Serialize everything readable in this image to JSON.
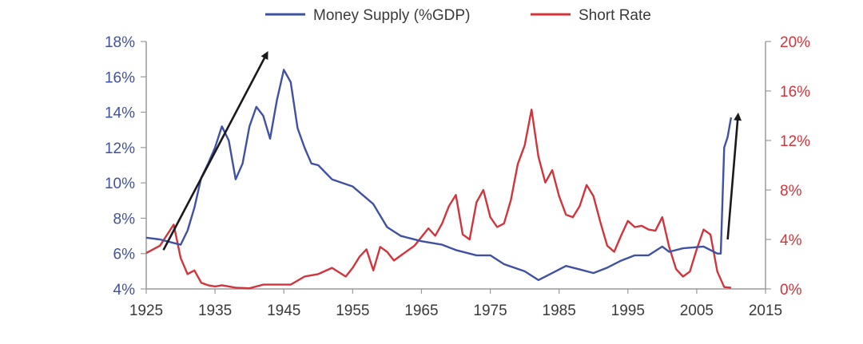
{
  "chart_data": {
    "type": "line",
    "colors": {
      "money_supply": "#3f51a3",
      "short_rate": "#d1343b",
      "arrow": "#1a1a1a",
      "axis": "#9a9a9a"
    },
    "legend": {
      "placement": "top-center",
      "items": [
        "Money Supply (%GDP)",
        "Short Rate"
      ]
    },
    "xlim": [
      1925,
      2015
    ],
    "x_ticks": [
      "1925",
      "1935",
      "1945",
      "1955",
      "1965",
      "1975",
      "1985",
      "1995",
      "2005",
      "2015"
    ],
    "y_left": {
      "lim": [
        4,
        18
      ],
      "ticks": [
        "18%",
        "16%",
        "14%",
        "12%",
        "10%",
        "8%",
        "6%",
        "4%"
      ]
    },
    "y_right": {
      "lim": [
        0,
        20
      ],
      "ticks": [
        "20%",
        "16%",
        "12%",
        "8%",
        "4%",
        "0%"
      ]
    },
    "grid": false,
    "series": [
      {
        "name": "Money Supply (%GDP)",
        "axis": "left",
        "x": [
          1925,
          1927,
          1929,
          1930,
          1931,
          1932,
          1933,
          1934,
          1935,
          1936,
          1937,
          1938,
          1939,
          1940,
          1941,
          1942,
          1943,
          1944,
          1945,
          1946,
          1947,
          1948,
          1949,
          1950,
          1952,
          1955,
          1958,
          1960,
          1962,
          1965,
          1968,
          1970,
          1973,
          1975,
          1977,
          1980,
          1982,
          1984,
          1986,
          1988,
          1990,
          1992,
          1994,
          1996,
          1998,
          2000,
          2001,
          2003,
          2006,
          2008,
          2008.5,
          2009,
          2009.5,
          2010
        ],
        "values": [
          6.9,
          6.8,
          6.6,
          6.5,
          7.3,
          8.6,
          10.3,
          11.1,
          12.0,
          13.2,
          12.4,
          10.2,
          11.1,
          13.2,
          14.3,
          13.8,
          12.5,
          14.7,
          16.4,
          15.7,
          13.1,
          12.0,
          11.1,
          11.0,
          10.2,
          9.8,
          8.8,
          7.5,
          7.0,
          6.7,
          6.5,
          6.2,
          5.9,
          5.9,
          5.4,
          5.0,
          4.5,
          4.9,
          5.3,
          5.1,
          4.9,
          5.2,
          5.6,
          5.9,
          5.9,
          6.4,
          6.1,
          6.3,
          6.4,
          6.0,
          6.0,
          12.0,
          12.6,
          13.7
        ]
      },
      {
        "name": "Short Rate",
        "axis": "right",
        "x": [
          1925,
          1927,
          1929,
          1930,
          1931,
          1932,
          1933,
          1934,
          1935,
          1936,
          1938,
          1940,
          1942,
          1946,
          1948,
          1950,
          1952,
          1954,
          1955,
          1956,
          1957,
          1958,
          1959,
          1960,
          1961,
          1962,
          1964,
          1966,
          1967,
          1968,
          1969,
          1970,
          1971,
          1972,
          1973,
          1974,
          1975,
          1976,
          1977,
          1978,
          1979,
          1980,
          1981,
          1982,
          1983,
          1984,
          1985,
          1986,
          1987,
          1988,
          1989,
          1990,
          1991,
          1992,
          1993,
          1994,
          1995,
          1996,
          1997,
          1998,
          1999,
          2000,
          2001,
          2002,
          2003,
          2004,
          2005,
          2006,
          2007,
          2008,
          2009,
          2009.5,
          2010
        ],
        "values": [
          2.9,
          3.5,
          5.2,
          2.5,
          1.2,
          1.5,
          0.5,
          0.3,
          0.2,
          0.3,
          0.1,
          0.05,
          0.35,
          0.35,
          1.0,
          1.2,
          1.7,
          1.0,
          1.7,
          2.6,
          3.2,
          1.5,
          3.4,
          3.0,
          2.3,
          2.7,
          3.5,
          4.9,
          4.3,
          5.3,
          6.7,
          7.6,
          4.4,
          4.0,
          7.0,
          8.0,
          5.8,
          5.0,
          5.3,
          7.2,
          10.1,
          11.6,
          14.5,
          10.7,
          8.6,
          9.6,
          7.5,
          6.0,
          5.8,
          6.7,
          8.4,
          7.5,
          5.4,
          3.5,
          3.0,
          4.3,
          5.5,
          5.0,
          5.1,
          4.8,
          4.7,
          5.8,
          3.4,
          1.6,
          1.0,
          1.4,
          3.2,
          4.8,
          4.4,
          1.4,
          0.15,
          0.12,
          0.1
        ]
      }
    ],
    "annotations": [
      {
        "type": "arrow",
        "from": [
          1927.5,
          6.2
        ],
        "to": [
          1942.5,
          17.3
        ],
        "axis": "left"
      },
      {
        "type": "arrow",
        "from": [
          2009.5,
          6.8
        ],
        "to": [
          2011,
          13.8
        ],
        "axis": "left"
      }
    ]
  }
}
